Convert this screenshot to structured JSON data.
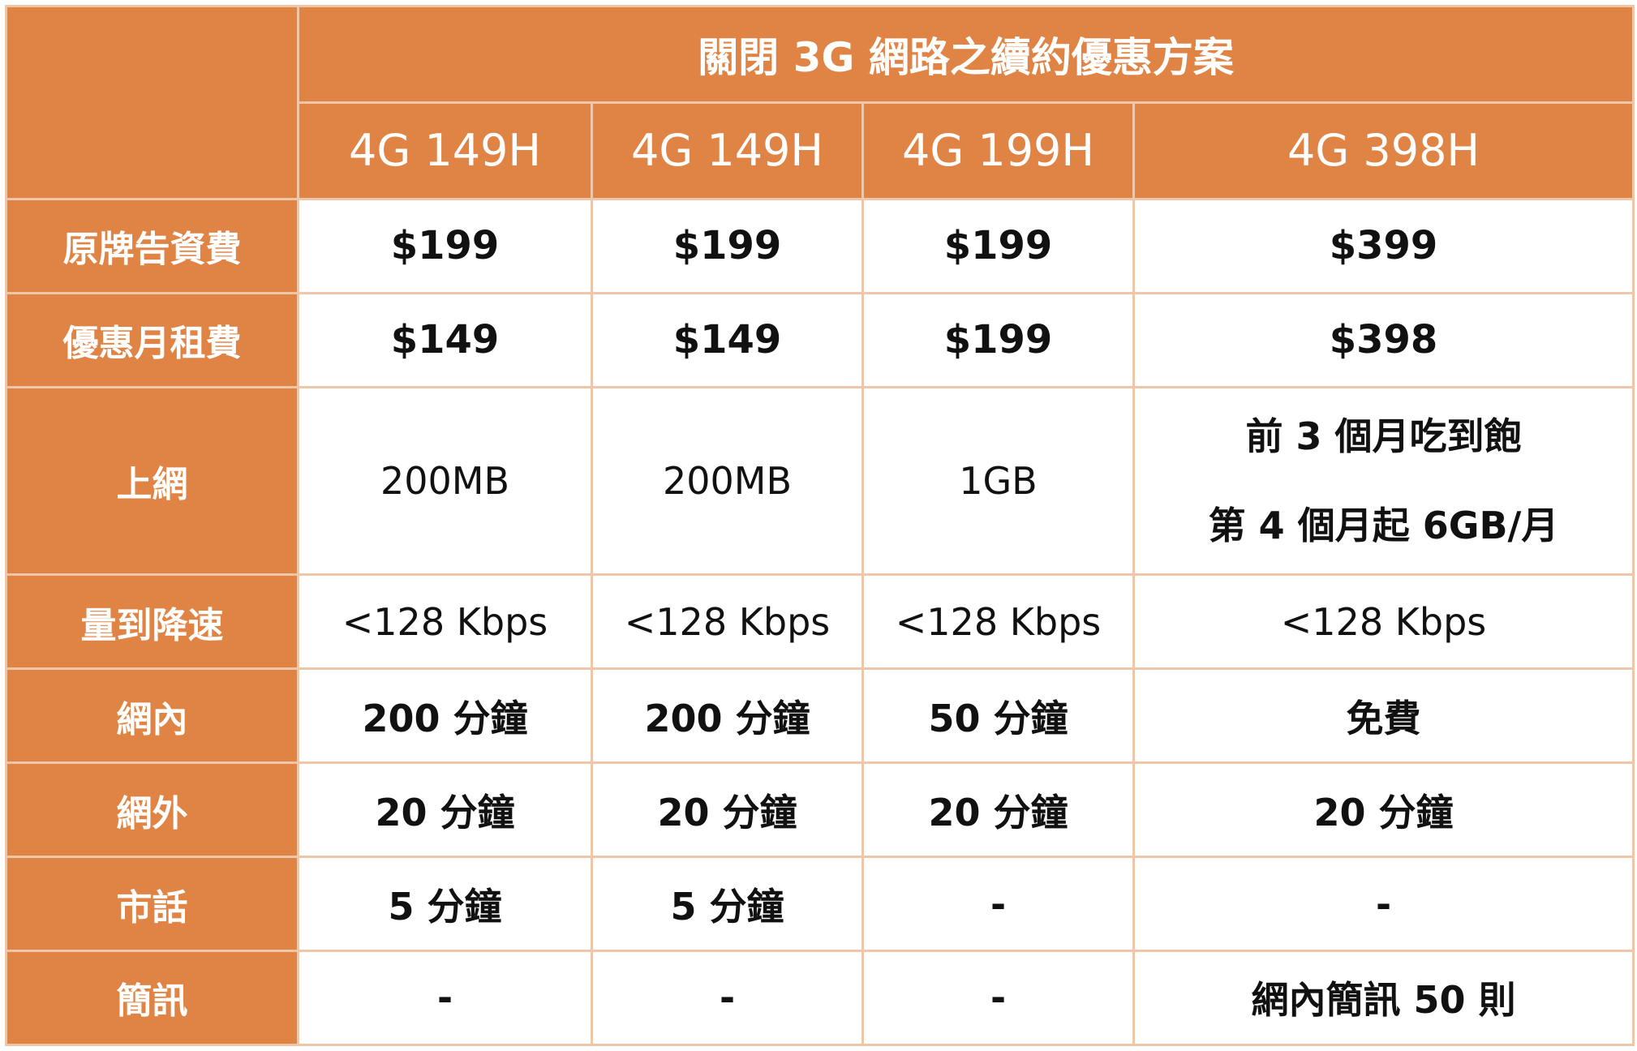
{
  "table": {
    "title": "關閉 3G 網路之續約優惠方案",
    "plans": [
      "4G 149H",
      "4G 149H",
      "4G 199H",
      "4G 398H"
    ],
    "rows": [
      {
        "label": "原牌告資費",
        "values": [
          "$199",
          "$199",
          "$199",
          "$399"
        ]
      },
      {
        "label": "優惠月租費",
        "values": [
          "$149",
          "$149",
          "$199",
          "$398"
        ]
      },
      {
        "label": "上網",
        "values": [
          "200MB",
          "200MB",
          "1GB"
        ],
        "last_lines": [
          "前 3 個月吃到飽",
          "第 4 個月起 6GB/月"
        ]
      },
      {
        "label": "量到降速",
        "values": [
          "<128 Kbps",
          "<128 Kbps",
          "<128 Kbps",
          "<128 Kbps"
        ]
      },
      {
        "label": "網內",
        "values": [
          "200 分鐘",
          "200 分鐘",
          "50 分鐘",
          "免費"
        ]
      },
      {
        "label": "網外",
        "values": [
          "20 分鐘",
          "20 分鐘",
          "20 分鐘",
          "20 分鐘"
        ]
      },
      {
        "label": "市話",
        "values": [
          "5 分鐘",
          "5 分鐘",
          "-",
          "-"
        ]
      },
      {
        "label": "簡訊",
        "values": [
          "-",
          "-",
          "-",
          "網內簡訊 50 則"
        ]
      }
    ]
  },
  "colors": {
    "header_bg": "#df8444",
    "header_text": "#ffffff",
    "border": "#efc7a8",
    "cell_bg": "#ffffff",
    "cell_text": "#111111"
  }
}
